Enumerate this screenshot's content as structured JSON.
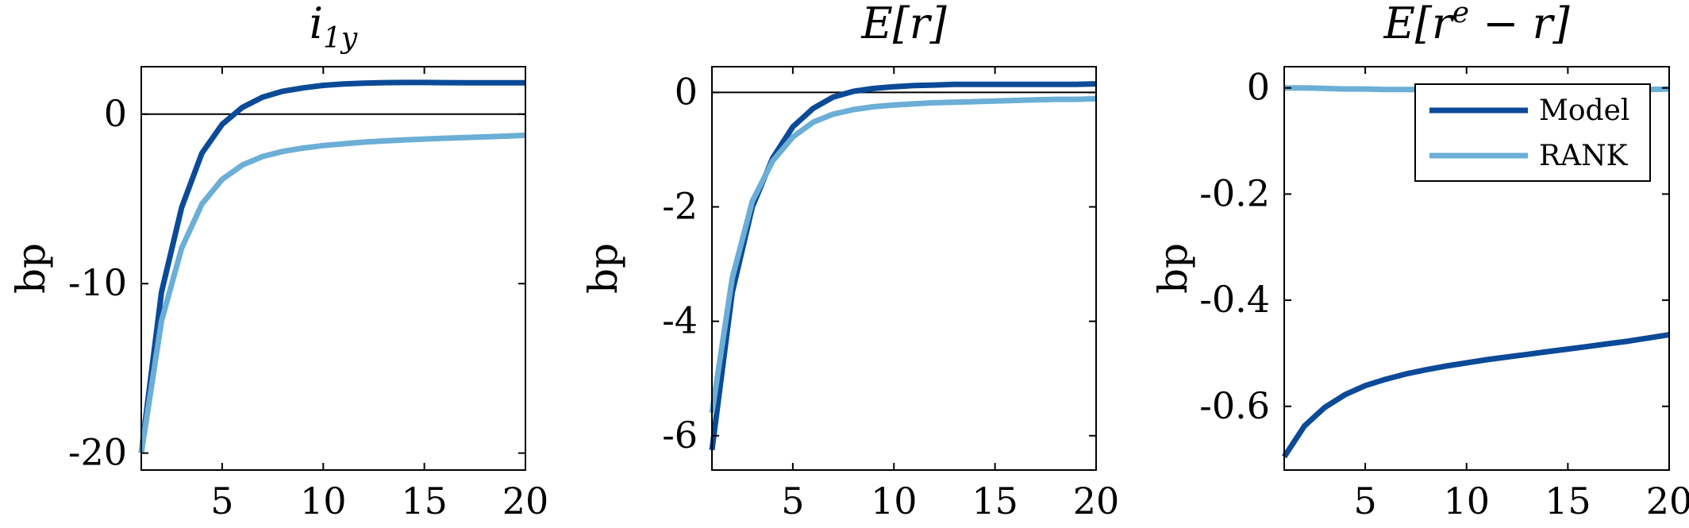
{
  "colors": {
    "model": "#0b4a98",
    "rank": "#6baed6",
    "axis": "#000000",
    "background": "#ffffff"
  },
  "chart_data": [
    {
      "type": "line",
      "title": "i",
      "title_sub": "1y",
      "ylabel": "bp",
      "xlim": [
        1,
        20
      ],
      "ylim": [
        -21,
        2.8
      ],
      "xticks": [
        5,
        10,
        15,
        20
      ],
      "xtick_labels": [
        "5",
        "10",
        "15",
        "20"
      ],
      "yticks": [
        -20,
        -10,
        0
      ],
      "ytick_labels": [
        "-20",
        "-10",
        "0"
      ],
      "zero_line": true,
      "x": [
        1,
        2,
        3,
        4,
        5,
        6,
        7,
        8,
        9,
        10,
        11,
        12,
        13,
        14,
        15,
        16,
        17,
        18,
        19,
        20
      ],
      "series": [
        {
          "key": "model",
          "values": [
            -20.0,
            -10.5,
            -5.5,
            -2.3,
            -0.6,
            0.4,
            1.0,
            1.35,
            1.55,
            1.7,
            1.78,
            1.83,
            1.86,
            1.87,
            1.87,
            1.86,
            1.85,
            1.85,
            1.85,
            1.85
          ]
        },
        {
          "key": "rank",
          "values": [
            -20.0,
            -12.2,
            -7.9,
            -5.3,
            -3.85,
            -3.0,
            -2.5,
            -2.2,
            -2.0,
            -1.85,
            -1.75,
            -1.65,
            -1.58,
            -1.52,
            -1.47,
            -1.42,
            -1.38,
            -1.34,
            -1.3,
            -1.25
          ]
        }
      ]
    },
    {
      "type": "line",
      "title": "E[r]",
      "ylabel": "bp",
      "xlim": [
        1,
        20
      ],
      "ylim": [
        -6.6,
        0.45
      ],
      "xticks": [
        5,
        10,
        15,
        20
      ],
      "xtick_labels": [
        "5",
        "10",
        "15",
        "20"
      ],
      "yticks": [
        -6,
        -4,
        -2,
        0
      ],
      "ytick_labels": [
        "-6",
        "-4",
        "-2",
        "0"
      ],
      "zero_line": true,
      "x": [
        1,
        2,
        3,
        4,
        5,
        6,
        7,
        8,
        9,
        10,
        11,
        12,
        13,
        14,
        15,
        16,
        17,
        18,
        19,
        20
      ],
      "series": [
        {
          "key": "model",
          "values": [
            -6.25,
            -3.5,
            -2.0,
            -1.15,
            -0.6,
            -0.28,
            -0.08,
            0.02,
            0.07,
            0.1,
            0.12,
            0.13,
            0.14,
            0.14,
            0.14,
            0.14,
            0.14,
            0.14,
            0.14,
            0.15
          ]
        },
        {
          "key": "rank",
          "values": [
            -5.6,
            -3.25,
            -1.9,
            -1.2,
            -0.78,
            -0.52,
            -0.38,
            -0.3,
            -0.25,
            -0.22,
            -0.2,
            -0.18,
            -0.17,
            -0.16,
            -0.15,
            -0.14,
            -0.13,
            -0.12,
            -0.12,
            -0.11
          ]
        }
      ]
    },
    {
      "type": "line",
      "title": "E[r",
      "title_sup": "e",
      "title_tail": " − r]",
      "ylabel": "bp",
      "xlim": [
        1,
        20
      ],
      "ylim": [
        -0.72,
        0.04
      ],
      "xticks": [
        5,
        10,
        15,
        20
      ],
      "xtick_labels": [
        "5",
        "10",
        "15",
        "20"
      ],
      "yticks": [
        -0.6,
        -0.4,
        -0.2,
        0
      ],
      "ytick_labels": [
        "-0.6",
        "-0.4",
        "-0.2",
        "0"
      ],
      "zero_line": false,
      "legend": {
        "placement": "top-right",
        "entries": [
          "Model",
          "RANK"
        ]
      },
      "x": [
        1,
        2,
        3,
        4,
        5,
        6,
        7,
        8,
        9,
        10,
        11,
        12,
        13,
        14,
        15,
        16,
        17,
        18,
        19,
        20
      ],
      "series": [
        {
          "key": "model",
          "name": "Model",
          "values": [
            -0.695,
            -0.637,
            -0.602,
            -0.578,
            -0.561,
            -0.549,
            -0.539,
            -0.531,
            -0.524,
            -0.518,
            -0.512,
            -0.507,
            -0.502,
            -0.497,
            -0.492,
            -0.487,
            -0.482,
            -0.477,
            -0.471,
            -0.465
          ]
        },
        {
          "key": "rank",
          "name": "RANK",
          "values": [
            0.0,
            0.0,
            -0.001,
            -0.002,
            -0.002,
            -0.003,
            -0.003,
            -0.003,
            -0.003,
            -0.003,
            -0.003,
            -0.003,
            -0.003,
            -0.003,
            -0.003,
            -0.003,
            -0.003,
            -0.003,
            -0.003,
            -0.002
          ]
        }
      ]
    }
  ]
}
